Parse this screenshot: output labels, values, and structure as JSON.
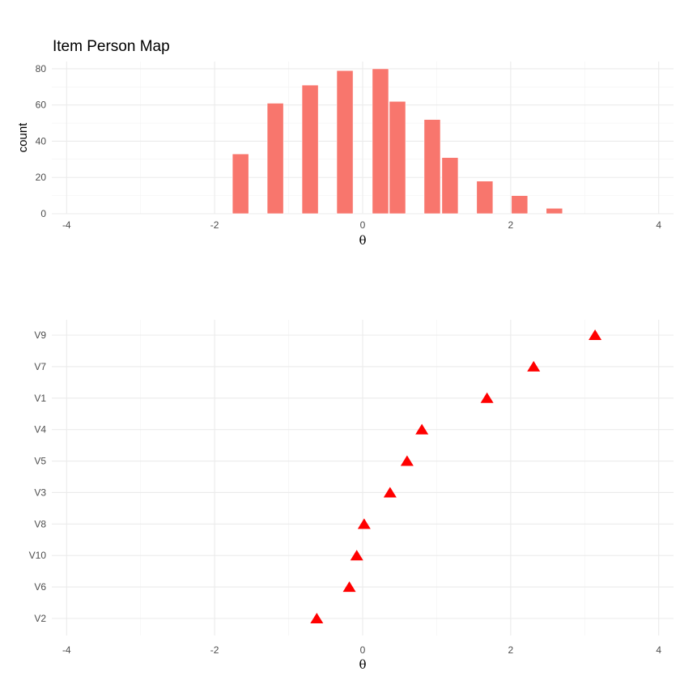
{
  "chart_data": [
    {
      "type": "bar",
      "title": "Item Person Map",
      "xlabel": "θ",
      "ylabel": "count",
      "xlim": [
        -4.2,
        4.2
      ],
      "ylim": [
        0,
        84
      ],
      "x_ticks": [
        -4,
        -2,
        0,
        2,
        4
      ],
      "y_ticks": [
        0,
        20,
        40,
        60,
        80
      ],
      "grid": true,
      "bar_color": "#F8766D",
      "bins": [
        {
          "x": -1.65,
          "value": 33
        },
        {
          "x": -1.18,
          "value": 61
        },
        {
          "x": -0.71,
          "value": 71
        },
        {
          "x": -0.24,
          "value": 79
        },
        {
          "x": 0.24,
          "value": 80
        },
        {
          "x": 0.47,
          "value": 62
        },
        {
          "x": 0.94,
          "value": 52
        },
        {
          "x": 1.18,
          "value": 31
        },
        {
          "x": 1.65,
          "value": 18
        },
        {
          "x": 2.12,
          "value": 10
        },
        {
          "x": 2.59,
          "value": 3
        }
      ]
    },
    {
      "type": "scatter",
      "title": "",
      "xlabel": "θ",
      "ylabel": "",
      "xlim": [
        -4.2,
        4.2
      ],
      "x_ticks": [
        -4,
        -2,
        0,
        2,
        4
      ],
      "grid": true,
      "marker": "triangle",
      "marker_color": "#FF0000",
      "categories": [
        "V2",
        "V6",
        "V10",
        "V8",
        "V3",
        "V5",
        "V4",
        "V1",
        "V7",
        "V9"
      ],
      "points": [
        {
          "item": "V2",
          "x": -0.62
        },
        {
          "item": "V6",
          "x": -0.18
        },
        {
          "item": "V10",
          "x": -0.08
        },
        {
          "item": "V8",
          "x": 0.02
        },
        {
          "item": "V3",
          "x": 0.37
        },
        {
          "item": "V5",
          "x": 0.6
        },
        {
          "item": "V4",
          "x": 0.8
        },
        {
          "item": "V1",
          "x": 1.68
        },
        {
          "item": "V7",
          "x": 2.31
        },
        {
          "item": "V9",
          "x": 3.14
        }
      ]
    }
  ]
}
